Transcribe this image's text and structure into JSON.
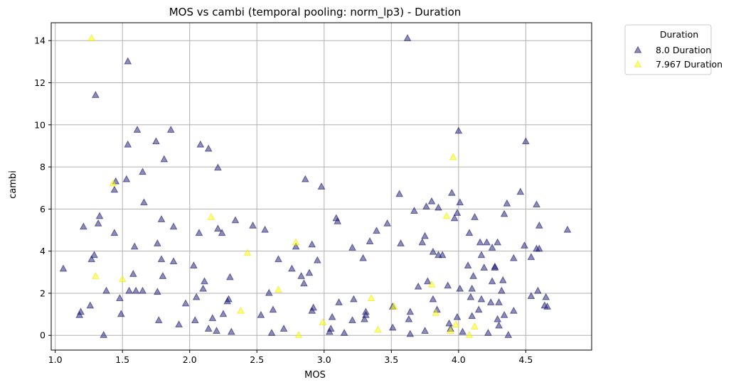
{
  "chart_data": {
    "type": "scatter",
    "title": "MOS vs cambi (temporal pooling: norm_lp3) - Duration",
    "xlabel": "MOS",
    "ylabel": "cambi",
    "xlim": [
      0.97,
      4.99
    ],
    "ylim": [
      -0.7,
      14.85
    ],
    "xticks": [
      "1.0",
      "1.5",
      "2.0",
      "2.5",
      "3.0",
      "3.5",
      "4.0",
      "4.5"
    ],
    "yticks": [
      "0",
      "2",
      "4",
      "6",
      "8",
      "10",
      "12",
      "14"
    ],
    "grid": true,
    "marker": "triangle",
    "legend": {
      "title": "Duration",
      "placement": "outside-top-right"
    },
    "series": [
      {
        "name": "8.0 Duration",
        "color": "#191970",
        "points": [
          [
            1.06,
            3.15
          ],
          [
            1.18,
            0.95
          ],
          [
            1.19,
            1.1
          ],
          [
            1.21,
            5.15
          ],
          [
            1.26,
            1.4
          ],
          [
            1.27,
            3.6
          ],
          [
            1.29,
            3.8
          ],
          [
            1.3,
            11.4
          ],
          [
            1.32,
            5.3
          ],
          [
            1.33,
            5.65
          ],
          [
            1.36,
            0.0
          ],
          [
            1.38,
            2.1
          ],
          [
            1.44,
            4.85
          ],
          [
            1.44,
            6.9
          ],
          [
            1.45,
            7.3
          ],
          [
            1.48,
            1.75
          ],
          [
            1.49,
            1.0
          ],
          [
            1.53,
            7.4
          ],
          [
            1.54,
            9.05
          ],
          [
            1.54,
            13.0
          ],
          [
            1.55,
            2.1
          ],
          [
            1.58,
            2.9
          ],
          [
            1.59,
            4.2
          ],
          [
            1.6,
            2.1
          ],
          [
            1.61,
            9.75
          ],
          [
            1.65,
            2.1
          ],
          [
            1.65,
            7.75
          ],
          [
            1.66,
            6.3
          ],
          [
            1.75,
            9.2
          ],
          [
            1.76,
            2.05
          ],
          [
            1.76,
            4.35
          ],
          [
            1.77,
            0.7
          ],
          [
            1.79,
            3.6
          ],
          [
            1.79,
            5.5
          ],
          [
            1.8,
            2.8
          ],
          [
            1.81,
            8.35
          ],
          [
            1.86,
            9.75
          ],
          [
            1.88,
            5.15
          ],
          [
            1.88,
            3.5
          ],
          [
            1.92,
            0.5
          ],
          [
            1.97,
            1.5
          ],
          [
            2.03,
            3.3
          ],
          [
            2.04,
            0.7
          ],
          [
            2.05,
            1.8
          ],
          [
            2.07,
            4.85
          ],
          [
            2.08,
            9.05
          ],
          [
            2.1,
            2.2
          ],
          [
            2.11,
            2.55
          ],
          [
            2.14,
            0.3
          ],
          [
            2.14,
            8.85
          ],
          [
            2.17,
            0.8
          ],
          [
            2.2,
            0.2
          ],
          [
            2.21,
            7.95
          ],
          [
            2.21,
            5.05
          ],
          [
            2.24,
            4.85
          ],
          [
            2.25,
            1.0
          ],
          [
            2.28,
            1.6
          ],
          [
            2.29,
            1.7
          ],
          [
            2.3,
            2.75
          ],
          [
            2.31,
            0.15
          ],
          [
            2.34,
            5.45
          ],
          [
            2.47,
            5.2
          ],
          [
            2.53,
            0.95
          ],
          [
            2.56,
            5.0
          ],
          [
            2.59,
            2.0
          ],
          [
            2.61,
            0.1
          ],
          [
            2.62,
            1.2
          ],
          [
            2.66,
            3.6
          ],
          [
            2.7,
            0.3
          ],
          [
            2.76,
            3.15
          ],
          [
            2.79,
            4.2
          ],
          [
            2.83,
            2.8
          ],
          [
            2.85,
            2.45
          ],
          [
            2.86,
            7.4
          ],
          [
            2.89,
            2.95
          ],
          [
            2.91,
            1.15
          ],
          [
            2.91,
            4.3
          ],
          [
            2.92,
            1.3
          ],
          [
            2.95,
            3.55
          ],
          [
            2.98,
            7.05
          ],
          [
            3.04,
            0.15
          ],
          [
            3.05,
            0.3
          ],
          [
            3.06,
            0.85
          ],
          [
            3.09,
            5.55
          ],
          [
            3.1,
            5.4
          ],
          [
            3.11,
            1.55
          ],
          [
            3.15,
            0.1
          ],
          [
            3.21,
            4.15
          ],
          [
            3.21,
            0.7
          ],
          [
            3.22,
            1.7
          ],
          [
            3.29,
            3.65
          ],
          [
            3.3,
            0.75
          ],
          [
            3.31,
            1.1
          ],
          [
            3.31,
            0.95
          ],
          [
            3.34,
            4.45
          ],
          [
            3.39,
            4.95
          ],
          [
            3.47,
            5.3
          ],
          [
            3.51,
            0.35
          ],
          [
            3.51,
            1.35
          ],
          [
            3.56,
            6.7
          ],
          [
            3.57,
            4.35
          ],
          [
            3.62,
            14.1
          ],
          [
            3.63,
            0.75
          ],
          [
            3.64,
            1.1
          ],
          [
            3.64,
            0.05
          ],
          [
            3.67,
            5.9
          ],
          [
            3.7,
            2.3
          ],
          [
            3.73,
            4.4
          ],
          [
            3.75,
            4.7
          ],
          [
            3.75,
            0.2
          ],
          [
            3.76,
            6.1
          ],
          [
            3.77,
            2.55
          ],
          [
            3.8,
            6.35
          ],
          [
            3.81,
            1.7
          ],
          [
            3.81,
            3.95
          ],
          [
            3.84,
            1.2
          ],
          [
            3.85,
            6.05
          ],
          [
            3.85,
            3.8
          ],
          [
            3.88,
            3.8
          ],
          [
            3.92,
            2.35
          ],
          [
            3.93,
            0.55
          ],
          [
            3.94,
            0.3
          ],
          [
            3.95,
            6.75
          ],
          [
            3.97,
            5.55
          ],
          [
            3.99,
            0.85
          ],
          [
            3.99,
            5.8
          ],
          [
            4.0,
            9.7
          ],
          [
            4.01,
            2.2
          ],
          [
            4.01,
            6.3
          ],
          [
            4.03,
            0.15
          ],
          [
            4.07,
            3.3
          ],
          [
            4.08,
            4.85
          ],
          [
            4.09,
            1.8
          ],
          [
            4.1,
            2.2
          ],
          [
            4.1,
            0.9
          ],
          [
            4.11,
            2.8
          ],
          [
            4.12,
            5.6
          ],
          [
            4.15,
            1.2
          ],
          [
            4.16,
            4.4
          ],
          [
            4.17,
            1.7
          ],
          [
            4.17,
            3.8
          ],
          [
            4.19,
            3.2
          ],
          [
            4.21,
            4.4
          ],
          [
            4.22,
            0.1
          ],
          [
            4.24,
            1.55
          ],
          [
            4.25,
            2.55
          ],
          [
            4.25,
            4.15
          ],
          [
            4.27,
            3.2
          ],
          [
            4.27,
            3.25
          ],
          [
            4.29,
            0.75
          ],
          [
            4.29,
            4.4
          ],
          [
            4.3,
            0.45
          ],
          [
            4.3,
            1.55
          ],
          [
            4.32,
            2.1
          ],
          [
            4.33,
            2.6
          ],
          [
            4.34,
            5.75
          ],
          [
            4.34,
            0.95
          ],
          [
            4.36,
            6.25
          ],
          [
            4.37,
            0.0
          ],
          [
            4.41,
            3.65
          ],
          [
            4.41,
            1.15
          ],
          [
            4.46,
            6.8
          ],
          [
            4.49,
            4.25
          ],
          [
            4.5,
            9.2
          ],
          [
            4.54,
            1.85
          ],
          [
            4.54,
            3.7
          ],
          [
            4.58,
            6.2
          ],
          [
            4.58,
            4.1
          ],
          [
            4.59,
            2.1
          ],
          [
            4.6,
            5.2
          ],
          [
            4.6,
            4.1
          ],
          [
            4.64,
            1.4
          ],
          [
            4.65,
            1.8
          ],
          [
            4.66,
            1.35
          ],
          [
            4.81,
            5.0
          ]
        ]
      },
      {
        "name": "7.967 Duration",
        "color": "#ffff00",
        "points": [
          [
            1.27,
            14.1
          ],
          [
            1.3,
            2.8
          ],
          [
            1.43,
            7.2
          ],
          [
            1.5,
            2.65
          ],
          [
            2.16,
            5.6
          ],
          [
            2.38,
            1.15
          ],
          [
            2.43,
            3.9
          ],
          [
            2.66,
            2.15
          ],
          [
            2.79,
            4.4
          ],
          [
            2.81,
            0.0
          ],
          [
            2.99,
            0.6
          ],
          [
            3.35,
            1.75
          ],
          [
            3.4,
            0.25
          ],
          [
            3.52,
            1.35
          ],
          [
            3.8,
            2.4
          ],
          [
            3.83,
            1.05
          ],
          [
            3.91,
            5.65
          ],
          [
            3.94,
            0.2
          ],
          [
            3.96,
            8.45
          ],
          [
            3.98,
            0.5
          ],
          [
            4.08,
            0.0
          ],
          [
            4.12,
            0.4
          ]
        ]
      }
    ]
  }
}
